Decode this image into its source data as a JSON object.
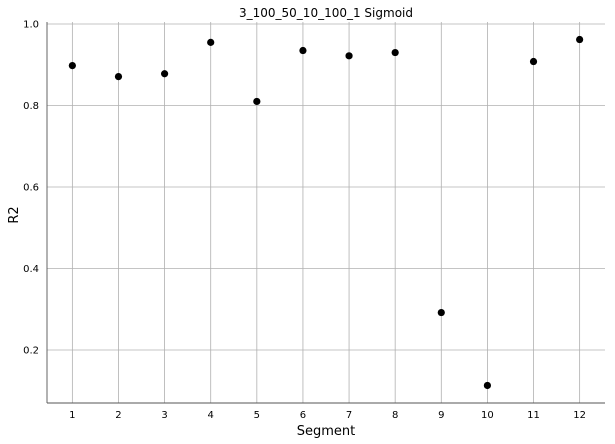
{
  "chart_data": {
    "type": "scatter",
    "title": "3_100_50_10_100_1 Sigmoid",
    "xlabel": "Segment",
    "ylabel": "R2",
    "x": [
      1,
      2,
      3,
      4,
      5,
      6,
      7,
      8,
      9,
      10,
      11,
      12
    ],
    "y": [
      0.898,
      0.871,
      0.878,
      0.955,
      0.81,
      0.935,
      0.922,
      0.93,
      0.292,
      0.113,
      0.908,
      0.962
    ],
    "x_ticks": [
      "1",
      "2",
      "3",
      "4",
      "5",
      "6",
      "7",
      "8",
      "9",
      "10",
      "11",
      "12"
    ],
    "y_ticks": [
      "0.2",
      "0.4",
      "0.6",
      "0.8",
      "1.0"
    ],
    "xlim": [
      0.45,
      12.55
    ],
    "ylim": [
      0.07,
      1.005
    ],
    "grid": true,
    "marker_color": "#000000",
    "grid_color": "#b0b0b0",
    "spine_color": "#555555"
  }
}
